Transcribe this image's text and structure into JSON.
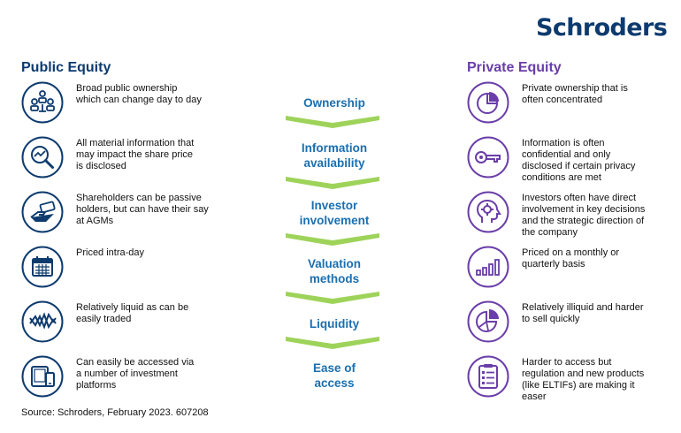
{
  "brand": {
    "logo_text": "Schroders"
  },
  "public": {
    "title": "Public Equity",
    "items": [
      {
        "icon": "people-network-icon",
        "text": "Broad public ownership\nwhich can change day to day"
      },
      {
        "icon": "magnifier-chart-icon",
        "text": "All material information that\nmay impact the share price\nis disclosed"
      },
      {
        "icon": "hand-money-icon",
        "text": "Shareholders can be passive\nholders, but can have their say\nat AGMs"
      },
      {
        "icon": "calendar-icon",
        "text": "Priced intra-day"
      },
      {
        "icon": "zigzag-lines-icon",
        "text": "Relatively liquid as can be\neasily traded"
      },
      {
        "icon": "devices-icon",
        "text": "Can easily be accessed via\na number of investment\nplatforms"
      }
    ]
  },
  "middle": {
    "labels": [
      "Ownership",
      "Information\navailability",
      "Investor\ninvolvement",
      "Valuation\nmethods",
      "Liquidity",
      "Ease of\naccess"
    ]
  },
  "private": {
    "title": "Private Equity",
    "items": [
      {
        "icon": "pie-chart-icon",
        "text": "Private ownership that is\noften concentrated"
      },
      {
        "icon": "key-icon",
        "text": "Information is often\nconfidential and only\ndisclosed if certain privacy\nconditions are met"
      },
      {
        "icon": "head-gear-icon",
        "text": "Investors often have direct\ninvolvement in key decisions\nand the strategic direction of\nthe company"
      },
      {
        "icon": "bar-chart-icon",
        "text": "Priced on a monthly or\nquarterly basis"
      },
      {
        "icon": "split-pie-icon",
        "text": "Relatively illiquid and harder\nto sell quickly"
      },
      {
        "icon": "clipboard-icon",
        "text": "Harder to access but\nregulation and new products\n(like ELTIFs) are making it\neaser"
      }
    ]
  },
  "source": "Source: Schroders, February 2023. 607208",
  "colors": {
    "public": "#0d3b6e",
    "private": "#6a3ea8",
    "middle_text": "#1a6fb0",
    "chevron": "#9ed35a"
  }
}
